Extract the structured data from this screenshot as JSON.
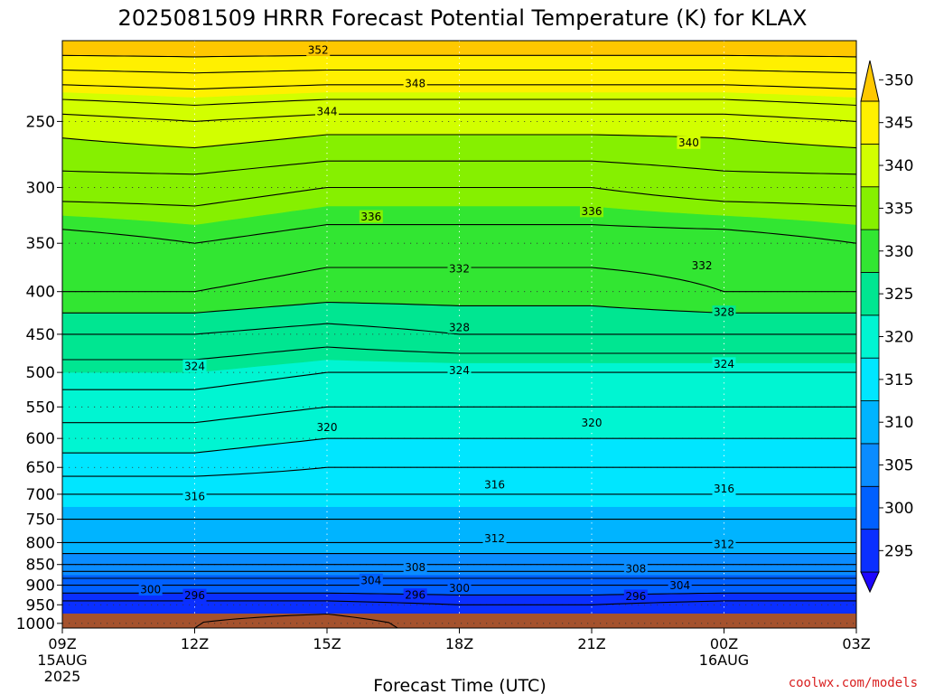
{
  "chart_data": {
    "type": "filled-contour",
    "title": "2025081509 HRRR Forecast Potential Temperature (K) for KLAX",
    "xlabel": "Forecast Time (UTC)",
    "credit": "coolwx.com/models",
    "x_ticks": [
      {
        "label": "09Z",
        "sub1": "15AUG",
        "sub2": "2025",
        "hour": 0
      },
      {
        "label": "12Z",
        "sub1": "",
        "sub2": "",
        "hour": 3
      },
      {
        "label": "15Z",
        "sub1": "",
        "sub2": "",
        "hour": 6
      },
      {
        "label": "18Z",
        "sub1": "",
        "sub2": "",
        "hour": 9
      },
      {
        "label": "21Z",
        "sub1": "",
        "sub2": "",
        "hour": 12
      },
      {
        "label": "00Z",
        "sub1": "16AUG",
        "sub2": "",
        "hour": 15
      },
      {
        "label": "03Z",
        "sub1": "",
        "sub2": "",
        "hour": 18
      }
    ],
    "y_ticks": [
      {
        "label": "250",
        "p": 250
      },
      {
        "label": "300",
        "p": 300
      },
      {
        "label": "350",
        "p": 350
      },
      {
        "label": "400",
        "p": 400
      },
      {
        "label": "450",
        "p": 450
      },
      {
        "label": "500",
        "p": 500
      },
      {
        "label": "550",
        "p": 550
      },
      {
        "label": "600",
        "p": 600
      },
      {
        "label": "650",
        "p": 650
      },
      {
        "label": "700",
        "p": 700
      },
      {
        "label": "750",
        "p": 750
      },
      {
        "label": "800",
        "p": 800
      },
      {
        "label": "850",
        "p": 850
      },
      {
        "label": "900",
        "p": 900
      },
      {
        "label": "950",
        "p": 950
      },
      {
        "label": "1000",
        "p": 1000
      }
    ],
    "pressure_range": [
      200,
      1013
    ],
    "ground_level_hpa": 1013,
    "ground_color": "#a5522d",
    "grid": true,
    "contour_interval": 2,
    "colorbar": {
      "ticks": [
        "295",
        "300",
        "305",
        "310",
        "315",
        "320",
        "325",
        "330",
        "335",
        "340",
        "345",
        "350"
      ],
      "levels": [
        290,
        295,
        300,
        305,
        310,
        315,
        320,
        325,
        330,
        335,
        340,
        345,
        350,
        355
      ],
      "colors": [
        "#1e06ff",
        "#0a2fff",
        "#0060ff",
        "#0a8cff",
        "#00b4ff",
        "#00e6ff",
        "#00f5d2",
        "#00e691",
        "#32e632",
        "#86f000",
        "#d2ff00",
        "#fff000",
        "#ffc800"
      ]
    },
    "series": [
      {
        "pressures": [
          1000,
          950,
          900,
          850,
          800,
          750,
          700,
          650,
          600,
          550,
          500,
          450,
          400,
          350,
          300,
          250,
          200
        ],
        "theta": [
          296,
          297,
          302,
          308,
          312,
          314,
          316,
          319,
          321,
          323,
          325,
          328,
          332,
          333,
          337,
          341,
          352
        ],
        "hour": 0
      },
      {
        "pressures": [
          1000,
          950,
          900,
          850,
          800,
          750,
          700,
          650,
          600,
          550,
          500,
          450,
          400,
          350,
          300,
          250,
          200
        ],
        "theta": [
          296,
          297,
          302,
          308,
          312,
          314,
          316,
          319,
          321,
          323,
          325,
          328,
          332,
          334,
          337,
          342,
          352
        ],
        "hour": 3
      },
      {
        "pressures": [
          1000,
          950,
          900,
          850,
          800,
          750,
          700,
          650,
          600,
          550,
          500,
          450,
          400,
          350,
          300,
          250,
          200
        ],
        "theta": [
          295,
          297,
          302,
          308,
          312,
          314,
          316,
          318,
          320,
          322,
          324,
          327,
          331,
          333,
          336,
          341,
          352
        ],
        "hour": 6
      },
      {
        "pressures": [
          1000,
          950,
          900,
          850,
          800,
          750,
          700,
          650,
          600,
          550,
          500,
          450,
          400,
          350,
          300,
          250,
          200
        ],
        "theta": [
          297,
          298,
          302,
          308,
          312,
          314,
          316,
          318,
          320,
          322,
          324,
          328,
          331,
          333,
          336,
          341,
          352
        ],
        "hour": 9
      },
      {
        "pressures": [
          1000,
          950,
          900,
          850,
          800,
          750,
          700,
          650,
          600,
          550,
          500,
          450,
          400,
          350,
          300,
          250,
          200
        ],
        "theta": [
          296,
          298,
          302,
          308,
          312,
          314,
          316,
          318,
          320,
          322,
          324,
          328,
          331,
          333,
          336,
          341,
          352
        ],
        "hour": 12
      },
      {
        "pressures": [
          1000,
          950,
          900,
          850,
          800,
          750,
          700,
          650,
          600,
          550,
          500,
          450,
          400,
          350,
          300,
          250,
          200
        ],
        "theta": [
          296,
          297,
          302,
          308,
          312,
          314,
          316,
          318,
          320,
          322,
          324,
          328,
          332,
          333,
          337,
          341,
          352
        ],
        "hour": 15
      },
      {
        "pressures": [
          1000,
          950,
          900,
          850,
          800,
          750,
          700,
          650,
          600,
          550,
          500,
          450,
          400,
          350,
          300,
          250,
          200
        ],
        "theta": [
          296,
          297,
          302,
          308,
          312,
          314,
          316,
          318,
          320,
          322,
          324,
          328,
          332,
          334,
          337,
          342,
          352
        ],
        "hour": 18
      }
    ],
    "contour_labels": [
      {
        "text": "352",
        "hour": 5.8,
        "p": 205
      },
      {
        "text": "348",
        "hour": 8.0,
        "p": 225
      },
      {
        "text": "344",
        "hour": 6.0,
        "p": 243
      },
      {
        "text": "340",
        "hour": 14.2,
        "p": 265
      },
      {
        "text": "336",
        "hour": 7.0,
        "p": 325
      },
      {
        "text": "336",
        "hour": 12.0,
        "p": 320
      },
      {
        "text": "332",
        "hour": 9.0,
        "p": 375
      },
      {
        "text": "332",
        "hour": 14.5,
        "p": 372
      },
      {
        "text": "328",
        "hour": 15.0,
        "p": 423
      },
      {
        "text": "328",
        "hour": 9.0,
        "p": 441
      },
      {
        "text": "324",
        "hour": 3.0,
        "p": 491
      },
      {
        "text": "324",
        "hour": 9.0,
        "p": 497
      },
      {
        "text": "324",
        "hour": 15.0,
        "p": 488
      },
      {
        "text": "320",
        "hour": 6.0,
        "p": 581
      },
      {
        "text": "320",
        "hour": 12.0,
        "p": 574
      },
      {
        "text": "316",
        "hour": 3.0,
        "p": 704
      },
      {
        "text": "316",
        "hour": 9.8,
        "p": 681
      },
      {
        "text": "316",
        "hour": 15.0,
        "p": 689
      },
      {
        "text": "312",
        "hour": 9.8,
        "p": 790
      },
      {
        "text": "312",
        "hour": 15.0,
        "p": 803
      },
      {
        "text": "308",
        "hour": 8.0,
        "p": 856
      },
      {
        "text": "308",
        "hour": 13.0,
        "p": 859
      },
      {
        "text": "304",
        "hour": 7.0,
        "p": 887
      },
      {
        "text": "304",
        "hour": 14.0,
        "p": 900
      },
      {
        "text": "300",
        "hour": 2.0,
        "p": 910
      },
      {
        "text": "300",
        "hour": 9.0,
        "p": 906
      },
      {
        "text": "296",
        "hour": 3.0,
        "p": 925
      },
      {
        "text": "296",
        "hour": 8.0,
        "p": 924
      },
      {
        "text": "296",
        "hour": 13.0,
        "p": 927
      }
    ]
  }
}
